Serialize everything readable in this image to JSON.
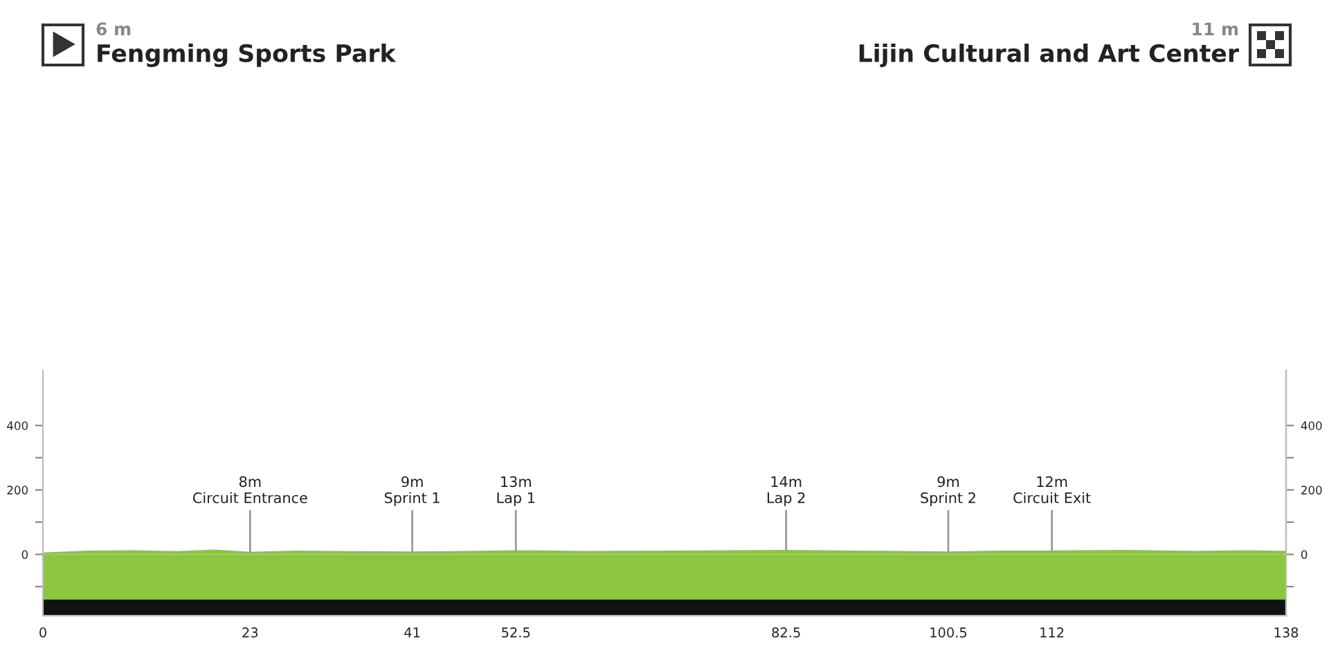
{
  "chart_data": {
    "type": "area",
    "x": [
      0,
      5,
      10,
      15,
      19,
      23,
      28,
      35,
      41,
      47,
      52.5,
      60,
      70,
      82.5,
      90,
      100.5,
      106,
      112,
      120,
      128,
      134,
      138
    ],
    "series": [
      {
        "color": "#8cc63f",
        "values": [
          6,
          12,
          13,
          10,
          15,
          8,
          12,
          10,
          9,
          11,
          13,
          11,
          12,
          14,
          12,
          9,
          12,
          12,
          14,
          11,
          13,
          11
        ]
      }
    ],
    "xlim": [
      0,
      138
    ],
    "xticks": [
      0,
      23,
      41,
      52.5,
      82.5,
      100.5,
      112,
      138
    ],
    "ylim": [
      -190,
      570
    ],
    "yticks": [
      {
        "value": -100,
        "label": null
      },
      0,
      {
        "value": 100,
        "label": null
      },
      200,
      {
        "value": 300,
        "label": null
      },
      400
    ],
    "y2lim": [
      -190,
      570
    ],
    "y2ticks": [
      {
        "value": -100,
        "label": null
      },
      0,
      {
        "value": 100,
        "label": null
      },
      200,
      {
        "value": 300,
        "label": null
      },
      400
    ],
    "annotations": [
      "6 m",
      "Fengming Sports Park",
      "11 m",
      "Lijin Cultural and Art Center",
      {
        "text": "8m\nCircuit Entrance",
        "x": 23,
        "y": 8
      },
      {
        "text": "9m\nSprint 1",
        "x": 41,
        "y": 9
      },
      {
        "text": "13m\nLap 1",
        "x": 52.5,
        "y": 13
      },
      {
        "text": "14m\nLap 2",
        "x": 82.5,
        "y": 14
      },
      {
        "text": "9m\nSprint 2",
        "x": 100.5,
        "y": 9
      },
      {
        "text": "12m\nCircuit Exit",
        "x": 112,
        "y": 12
      }
    ],
    "bands": [
      {
        "axis": "y",
        "from": -140,
        "to": 0,
        "color": "#8cc63f"
      },
      {
        "axis": "y",
        "from": -190,
        "to": -140,
        "color": "#111111"
      }
    ],
    "grid": false,
    "legend": false
  }
}
